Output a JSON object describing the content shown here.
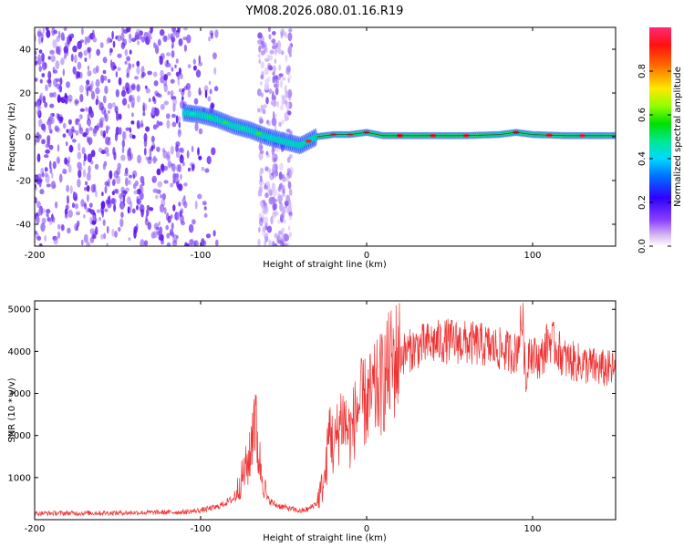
{
  "title": "YM08.2026.080.01.16.R19",
  "chart_data": [
    {
      "type": "heatmap",
      "title": "YM08.2026.080.01.16.R19",
      "xlabel": "Height of straight line (km)",
      "ylabel": "Frequency (Hz)",
      "xlim": [
        -200,
        150
      ],
      "ylim": [
        -50,
        50
      ],
      "xticks": [
        -200,
        -100,
        0,
        100
      ],
      "yticks": [
        -40,
        -20,
        0,
        20,
        40
      ],
      "colorbar": {
        "label": "Normalized spectral amplitude",
        "range": [
          0.0,
          1.0
        ],
        "ticks": [
          0.0,
          0.2,
          0.4,
          0.6,
          0.8
        ]
      },
      "ridge": {
        "description": "Doppler ridge: frequency shift vs height",
        "x": [
          -110,
          -100,
          -90,
          -80,
          -70,
          -60,
          -50,
          -40,
          -35,
          -30,
          -20,
          -10,
          0,
          10,
          30,
          60,
          80,
          90,
          100,
          120,
          150
        ],
        "y": [
          11,
          10,
          8,
          5,
          3,
          0,
          -2,
          -4,
          -2,
          0,
          1,
          1,
          2,
          0.5,
          0.5,
          0.5,
          1,
          2,
          1,
          0.5,
          0.5
        ]
      },
      "noise_bands": [
        {
          "x_range": [
            -200,
            -90
          ],
          "density": "high"
        },
        {
          "x_range": [
            -65,
            -45
          ],
          "density": "medium"
        }
      ]
    },
    {
      "type": "line",
      "xlabel": "Height of straight line (km)",
      "ylabel": "SNR (10 * v/v)",
      "xlim": [
        -200,
        150
      ],
      "ylim": [
        0,
        5200
      ],
      "xticks": [
        -200,
        -100,
        0,
        100
      ],
      "yticks": [
        1000,
        2000,
        3000,
        4000,
        5000
      ],
      "series": [
        {
          "name": "SNR",
          "color": "#ee3333",
          "x": [
            -200,
            -150,
            -110,
            -100,
            -90,
            -80,
            -75,
            -70,
            -68,
            -65,
            -60,
            -55,
            -50,
            -45,
            -40,
            -35,
            -30,
            -25,
            -22,
            -20,
            -15,
            -12,
            -10,
            -5,
            0,
            5,
            10,
            15,
            20,
            30,
            40,
            50,
            60,
            70,
            80,
            90,
            94,
            96,
            98,
            100,
            105,
            110,
            120,
            130,
            140,
            150
          ],
          "y": [
            150,
            160,
            180,
            220,
            300,
            500,
            1000,
            1500,
            2700,
            1500,
            500,
            350,
            300,
            250,
            200,
            250,
            400,
            1000,
            2300,
            1600,
            2500,
            2200,
            2000,
            2700,
            2800,
            3000,
            3300,
            3700,
            3900,
            4100,
            4200,
            4250,
            4200,
            4150,
            4050,
            3950,
            4800,
            3100,
            4200,
            3900,
            3800,
            4300,
            3800,
            3700,
            3600,
            3550
          ]
        }
      ]
    }
  ]
}
